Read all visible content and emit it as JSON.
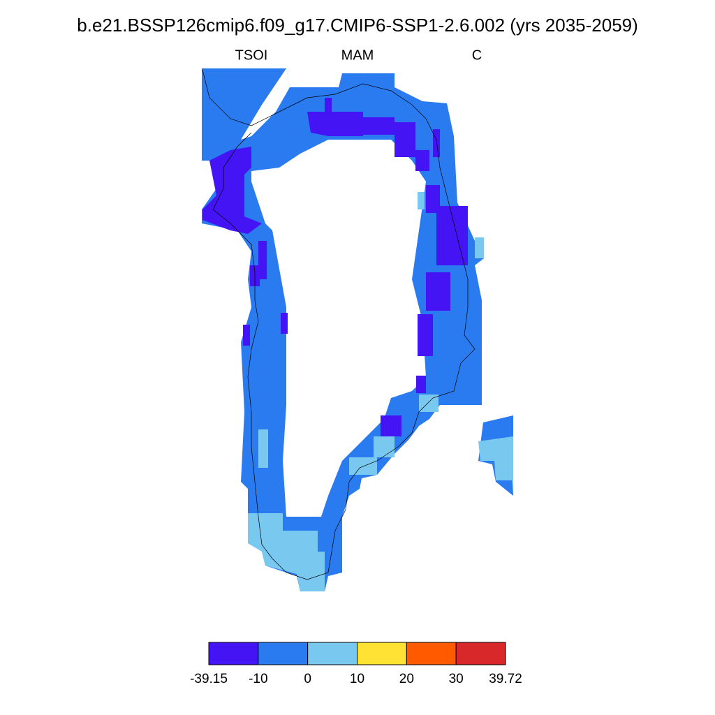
{
  "title": "b.e21.BSSP126cmip6.f09_g17.CMIP6-SSP1-2.6.002 (yrs 2035-2059)",
  "subtitles": {
    "left": "TSOI",
    "center": "MAM",
    "right": "C"
  },
  "colorbar": {
    "levels": [
      -39.15,
      -10,
      0,
      10,
      20,
      30,
      39.72
    ],
    "colors": [
      "#4414f4",
      "#2a7af0",
      "#78c8f0",
      "#ffe234",
      "#ff5a00",
      "#d8282a"
    ]
  }
}
